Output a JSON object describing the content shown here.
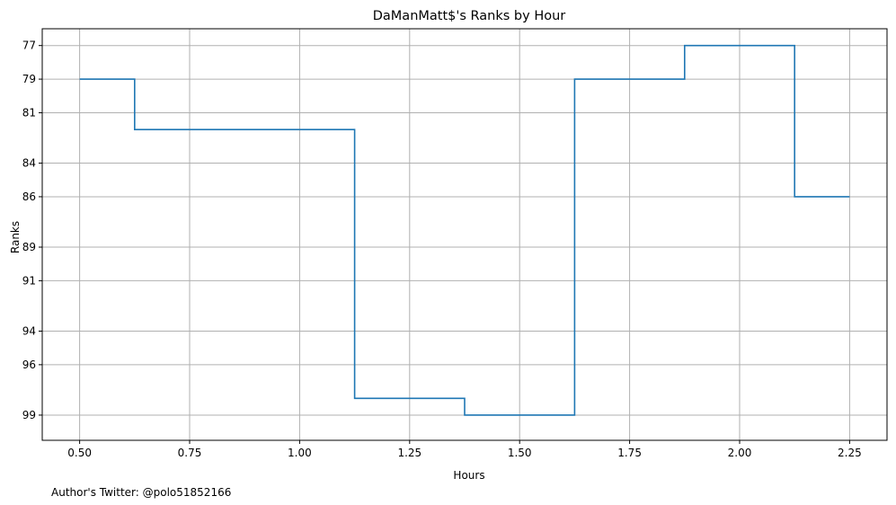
{
  "chart_data": {
    "type": "line",
    "step": "mid",
    "title": "DaManMatt$'s Ranks by Hour",
    "xlabel": "Hours",
    "ylabel": "Ranks",
    "footer": "Author's Twitter: @polo51852166",
    "x": [
      0.5,
      0.75,
      1.0,
      1.25,
      1.5,
      1.75,
      2.0,
      2.25
    ],
    "series": [
      {
        "values": [
          79,
          82,
          82,
          98,
          99,
          79,
          77,
          86
        ],
        "color": "#1f77b4"
      }
    ],
    "xlim": [
      0.415,
      2.335
    ],
    "ylim": [
      100.5,
      76.0
    ],
    "y_inverted": true,
    "x_ticks": [
      {
        "value": 0.5,
        "label": "0.50"
      },
      {
        "value": 0.75,
        "label": "0.75"
      },
      {
        "value": 1.0,
        "label": "1.00"
      },
      {
        "value": 1.25,
        "label": "1.25"
      },
      {
        "value": 1.5,
        "label": "1.50"
      },
      {
        "value": 1.75,
        "label": "1.75"
      },
      {
        "value": 2.0,
        "label": "2.00"
      },
      {
        "value": 2.25,
        "label": "2.25"
      }
    ],
    "y_ticks": [
      {
        "value": 77,
        "label": "77"
      },
      {
        "value": 79,
        "label": "79"
      },
      {
        "value": 81,
        "label": "81"
      },
      {
        "value": 84,
        "label": "84"
      },
      {
        "value": 86,
        "label": "86"
      },
      {
        "value": 89,
        "label": "89"
      },
      {
        "value": 91,
        "label": "91"
      },
      {
        "value": 94,
        "label": "94"
      },
      {
        "value": 96,
        "label": "96"
      },
      {
        "value": 99,
        "label": "99"
      }
    ],
    "grid": true,
    "grid_color": "#b0b0b0",
    "legend": false
  }
}
